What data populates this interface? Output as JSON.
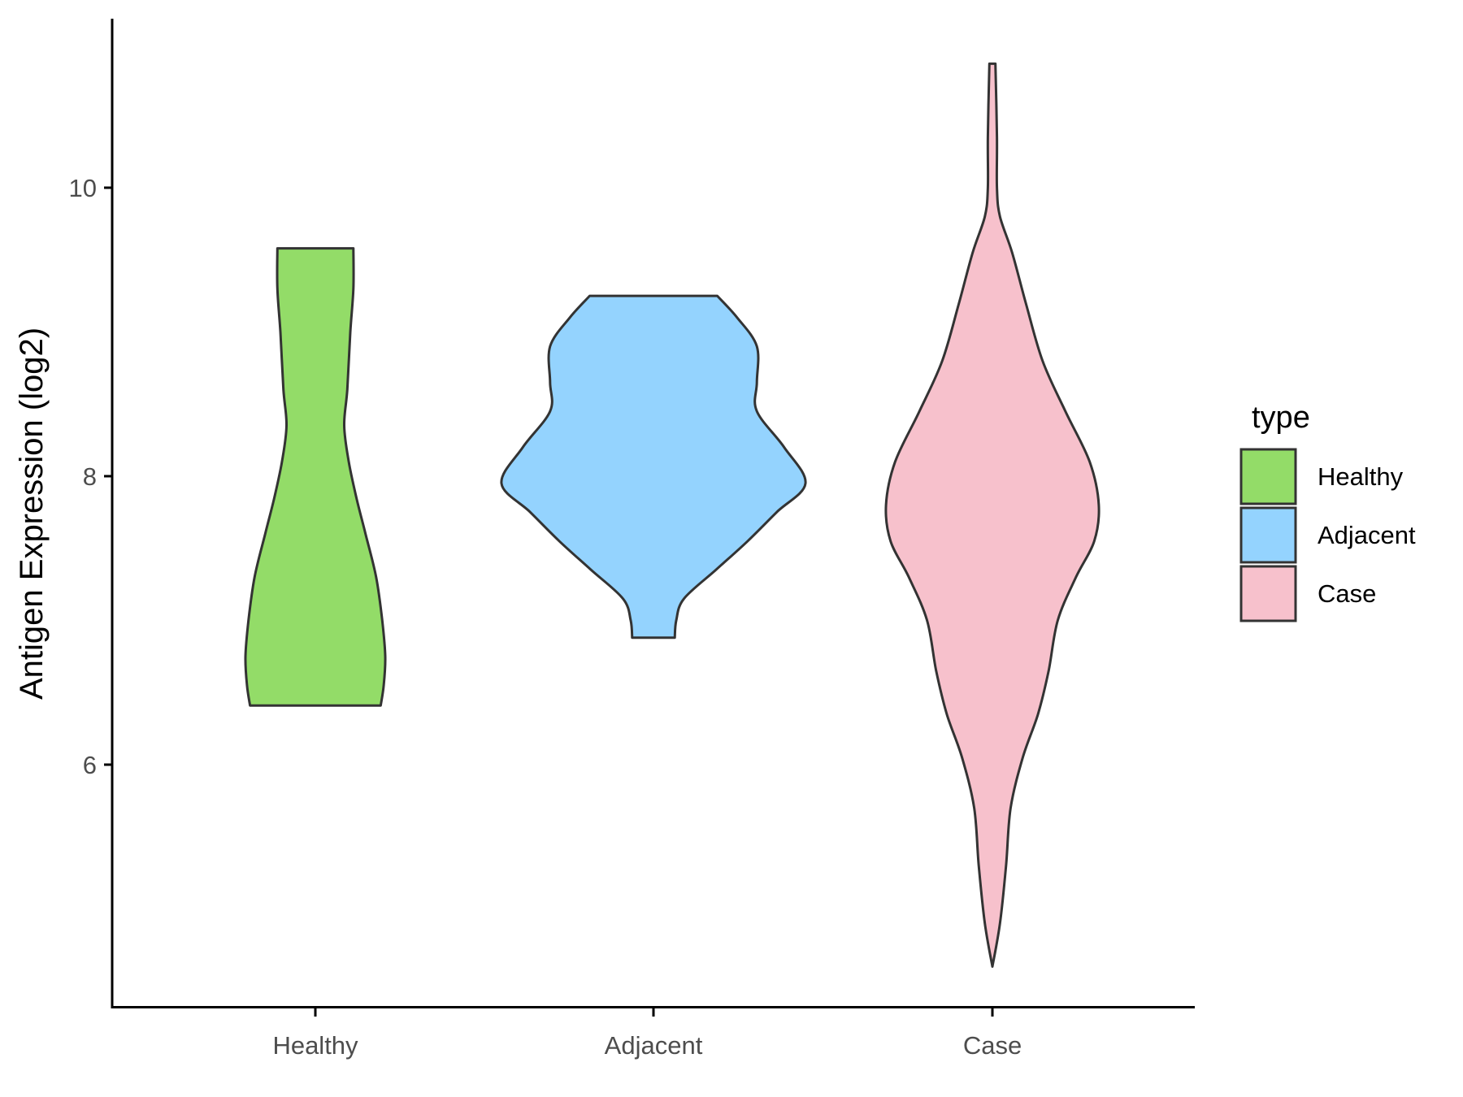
{
  "chart_data": {
    "type": "violin",
    "title": "",
    "xlabel": "",
    "ylabel": "Antigen Expression (log2)",
    "categories": [
      "Healthy",
      "Adjacent",
      "Case"
    ],
    "yticks": [
      6,
      8,
      10
    ],
    "ylim": [
      4.4,
      11.3
    ],
    "grid": false,
    "legend": {
      "title": "type",
      "position": "right",
      "entries": [
        "Healthy",
        "Adjacent",
        "Case"
      ]
    },
    "colors": {
      "Healthy": "#93dc68",
      "Adjacent": "#94d3fe",
      "Case": "#f7c1cc",
      "outline": "#333333"
    },
    "series": [
      {
        "name": "Healthy",
        "min": 6.41,
        "max": 9.58,
        "density": [
          [
            6.41,
            0.43
          ],
          [
            6.55,
            0.45
          ],
          [
            6.75,
            0.46
          ],
          [
            7.0,
            0.44
          ],
          [
            7.3,
            0.4
          ],
          [
            7.6,
            0.33
          ],
          [
            7.85,
            0.27
          ],
          [
            8.1,
            0.22
          ],
          [
            8.35,
            0.19
          ],
          [
            8.6,
            0.21
          ],
          [
            9.0,
            0.23
          ],
          [
            9.3,
            0.25
          ],
          [
            9.58,
            0.25
          ]
        ]
      },
      {
        "name": "Adjacent",
        "min": 6.88,
        "max": 9.25,
        "density": [
          [
            6.88,
            0.14
          ],
          [
            7.0,
            0.15
          ],
          [
            7.15,
            0.2
          ],
          [
            7.35,
            0.41
          ],
          [
            7.55,
            0.62
          ],
          [
            7.75,
            0.81
          ],
          [
            7.95,
            1.0
          ],
          [
            8.2,
            0.86
          ],
          [
            8.45,
            0.68
          ],
          [
            8.65,
            0.68
          ],
          [
            8.9,
            0.68
          ],
          [
            9.1,
            0.55
          ],
          [
            9.25,
            0.42
          ]
        ]
      },
      {
        "name": "Case",
        "min": 4.6,
        "max": 10.86,
        "density": [
          [
            4.6,
            0.0
          ],
          [
            4.9,
            0.05
          ],
          [
            5.3,
            0.09
          ],
          [
            5.7,
            0.12
          ],
          [
            6.05,
            0.2
          ],
          [
            6.35,
            0.3
          ],
          [
            6.65,
            0.37
          ],
          [
            7.0,
            0.43
          ],
          [
            7.3,
            0.55
          ],
          [
            7.55,
            0.67
          ],
          [
            7.8,
            0.7
          ],
          [
            8.1,
            0.64
          ],
          [
            8.45,
            0.48
          ],
          [
            8.8,
            0.33
          ],
          [
            9.2,
            0.22
          ],
          [
            9.55,
            0.13
          ],
          [
            9.8,
            0.05
          ],
          [
            10.0,
            0.03
          ],
          [
            10.35,
            0.03
          ],
          [
            10.86,
            0.02
          ]
        ]
      }
    ]
  }
}
